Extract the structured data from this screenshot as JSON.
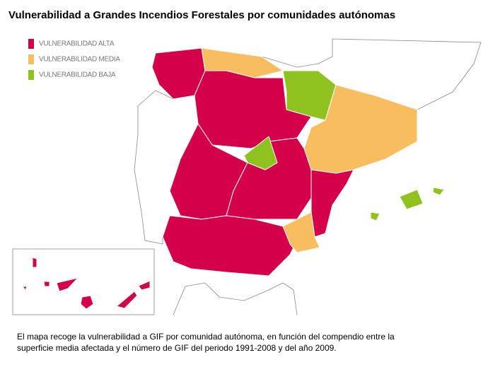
{
  "title": "Vulnerabilidad a Grandes Incendios Forestales por comunidades autónomas",
  "legend": [
    {
      "label": "VULNERABILIDAD ALTA",
      "color": "#d5004a"
    },
    {
      "label": "VULNERABILIDAD MEDIA",
      "color": "#f8bd5e"
    },
    {
      "label": "VULNERABILIDAD BAJA",
      "color": "#8fc21f"
    }
  ],
  "caption": [
    "El mapa recoge la vulnerabilidad a GIF por comunidad autónoma, en función del compendio entre la",
    "superficie media afectada y el número de GIF del periodo 1991-2008 y del año 2009."
  ]
}
